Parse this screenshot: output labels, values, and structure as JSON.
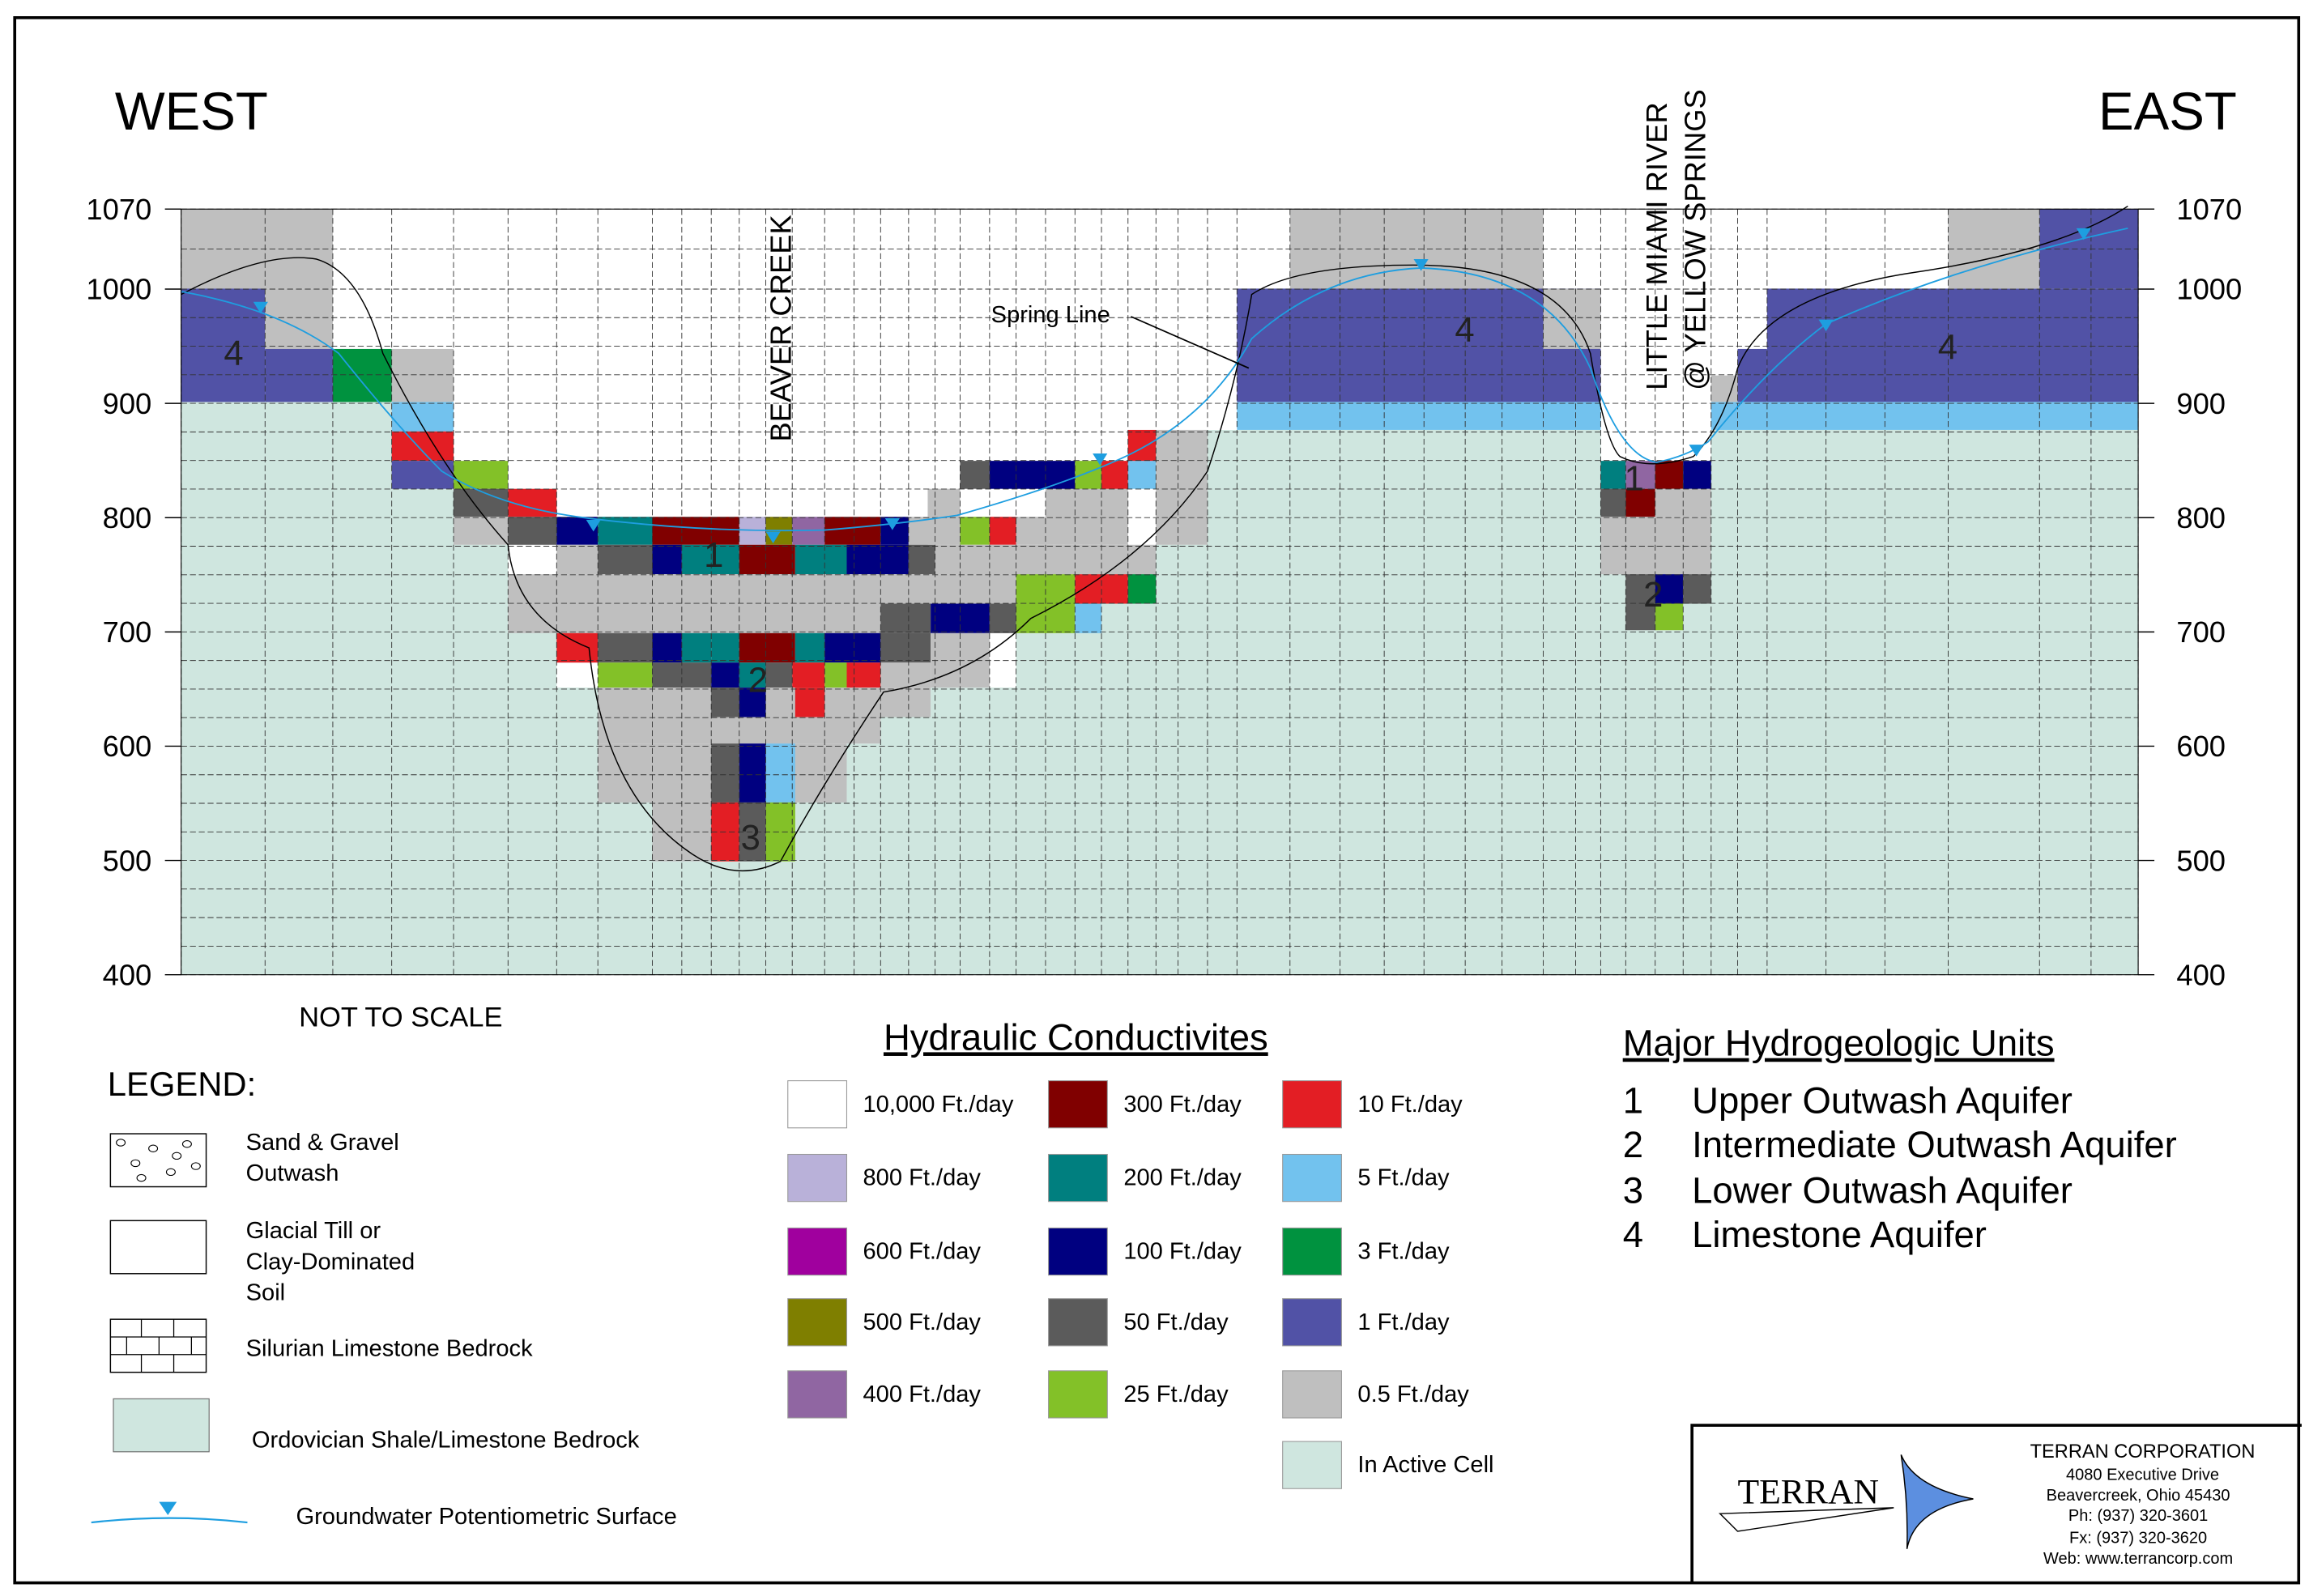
{
  "title_west": "WEST",
  "title_east": "EAST",
  "not_to_scale": "NOT TO SCALE",
  "labels": {
    "beaver_creek": "BEAVER CREEK",
    "little_miami_1": "LITTLE MIAMI RIVER",
    "little_miami_2": "@ YELLOW SPRINGS",
    "spring_line": "Spring Line"
  },
  "elevation_ticks": [
    "1070",
    "1000",
    "900",
    "800",
    "700",
    "600",
    "500",
    "400"
  ],
  "unit_numbers": [
    "4",
    "1",
    "2",
    "3",
    "4",
    "4",
    "1",
    "2"
  ],
  "legend": {
    "title": "LEGEND:",
    "items": [
      {
        "label1": "Sand & Gravel",
        "label2": "Outwash",
        "label3": ""
      },
      {
        "label1": "Glacial Till or",
        "label2": "Clay-Dominated",
        "label3": "Soil"
      },
      {
        "label1": "Silurian Limestone Bedrock",
        "label2": "",
        "label3": ""
      },
      {
        "label1": "Ordovician Shale/Limestone Bedrock",
        "label2": "",
        "label3": ""
      },
      {
        "label1": "Groundwater Potentiometric Surface",
        "label2": "",
        "label3": ""
      }
    ]
  },
  "conductivity": {
    "title": "Hydraulic Conductivites",
    "items": [
      {
        "label": "10,000 Ft./day",
        "color": "#ffffff"
      },
      {
        "label": "800 Ft./day",
        "color": "#b9b1d9"
      },
      {
        "label": "600 Ft./day",
        "color": "#a0009e"
      },
      {
        "label": "500 Ft./day",
        "color": "#7f7f00"
      },
      {
        "label": "400 Ft./day",
        "color": "#9066a2"
      },
      {
        "label": "300 Ft./day",
        "color": "#800000"
      },
      {
        "label": "200 Ft./day",
        "color": "#007f7f"
      },
      {
        "label": "100 Ft./day",
        "color": "#000080"
      },
      {
        "label": "50 Ft./day",
        "color": "#5b5b5b"
      },
      {
        "label": "25 Ft./day",
        "color": "#83c128"
      },
      {
        "label": "10 Ft./day",
        "color": "#e31e24"
      },
      {
        "label": "5 Ft./day",
        "color": "#72c2ee"
      },
      {
        "label": "3 Ft./day",
        "color": "#00923f"
      },
      {
        "label": "1 Ft./day",
        "color": "#5152a6"
      },
      {
        "label": "0.5 Ft./day",
        "color": "#bfbfbf"
      },
      {
        "label": "In Active Cell",
        "color": "#cfe6df"
      }
    ]
  },
  "units": {
    "title": "Major Hydrogeologic Units",
    "items": [
      {
        "num": "1",
        "name": "Upper Outwash Aquifer"
      },
      {
        "num": "2",
        "name": "Intermediate Outwash Aquifer"
      },
      {
        "num": "3",
        "name": "Lower Outwash Aquifer"
      },
      {
        "num": "4",
        "name": "Limestone Aquifer"
      }
    ]
  },
  "company": {
    "logo_text": "TERRAN",
    "name": "TERRAN CORPORATION",
    "address1": "4080 Executive Drive",
    "address2": "Beavercreek, Ohio 45430",
    "phone": "Ph: (937) 320-3601",
    "fax": "Fx: (937) 320-3620",
    "web": "Web: www.terrancorp.com"
  },
  "colors": {
    "water_table": "#1e9ee0",
    "shale": "#cfe6df"
  }
}
